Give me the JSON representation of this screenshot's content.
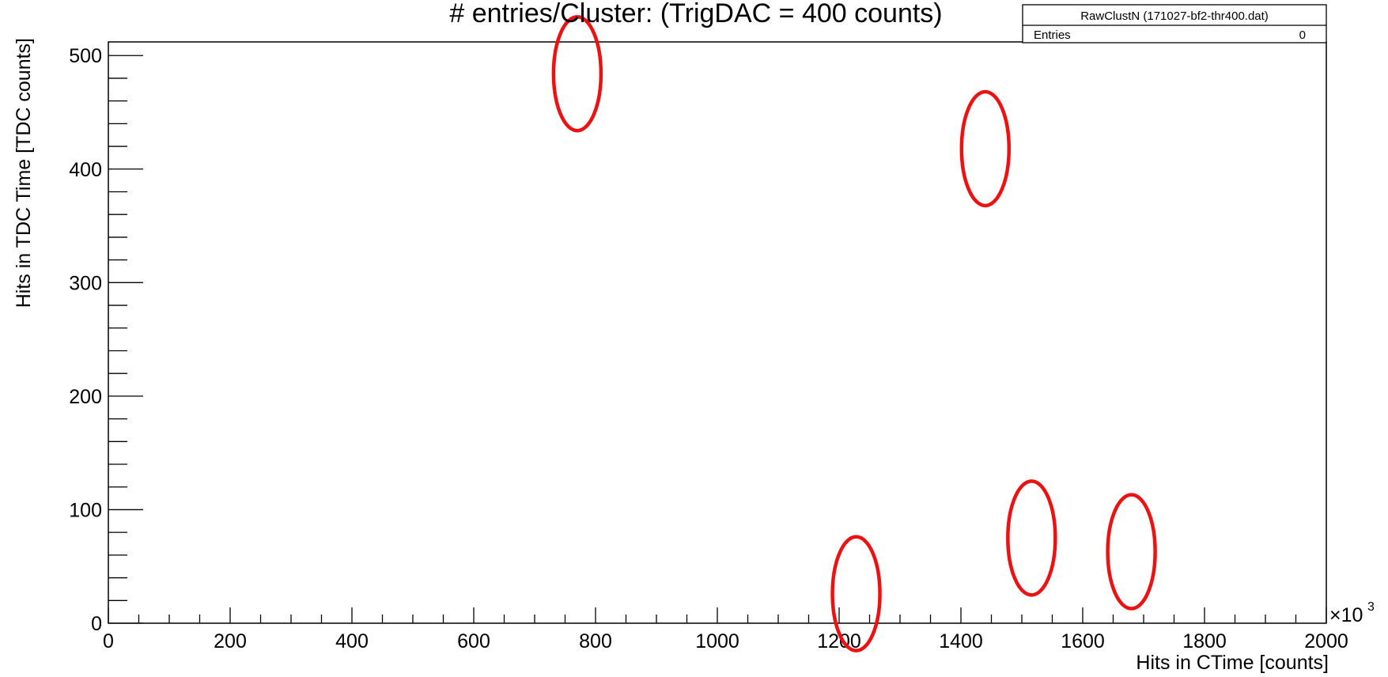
{
  "chart_data": {
    "type": "scatter",
    "title": "# entries/Cluster: (TrigDAC = 400 counts)",
    "xlabel": "Hits in CTime [counts]",
    "ylabel": "Hits in TDC Time [TDC counts]",
    "x_exponent": "×10",
    "x_exponent_power": "3",
    "xlim": [
      0,
      2000
    ],
    "ylim": [
      0,
      512
    ],
    "x_ticks": [
      0,
      200,
      400,
      600,
      800,
      1000,
      1200,
      1400,
      1600,
      1800,
      2000
    ],
    "y_ticks": [
      0,
      100,
      200,
      300,
      400,
      500
    ],
    "x_minor_step": 50,
    "y_minor_step": 20,
    "grid": false,
    "legend": "none",
    "stats_box": {
      "name": "RawClustN (171027-bf2-thr400.dat)",
      "entries_label": "Entries",
      "entries_value": "0"
    },
    "annotations": [
      {
        "shape": "ellipse",
        "x": 770,
        "y": 484,
        "rx": 40,
        "ry": 50
      },
      {
        "shape": "ellipse",
        "x": 1440,
        "y": 418,
        "rx": 40,
        "ry": 50
      },
      {
        "shape": "ellipse",
        "x": 1228,
        "y": 26,
        "rx": 42,
        "ry": 50
      },
      {
        "shape": "ellipse",
        "x": 1516,
        "y": 75,
        "rx": 40,
        "ry": 50
      },
      {
        "shape": "ellipse",
        "x": 1680,
        "y": 63,
        "rx": 40,
        "ry": 50
      }
    ],
    "annotation_color": "#ee1111"
  }
}
